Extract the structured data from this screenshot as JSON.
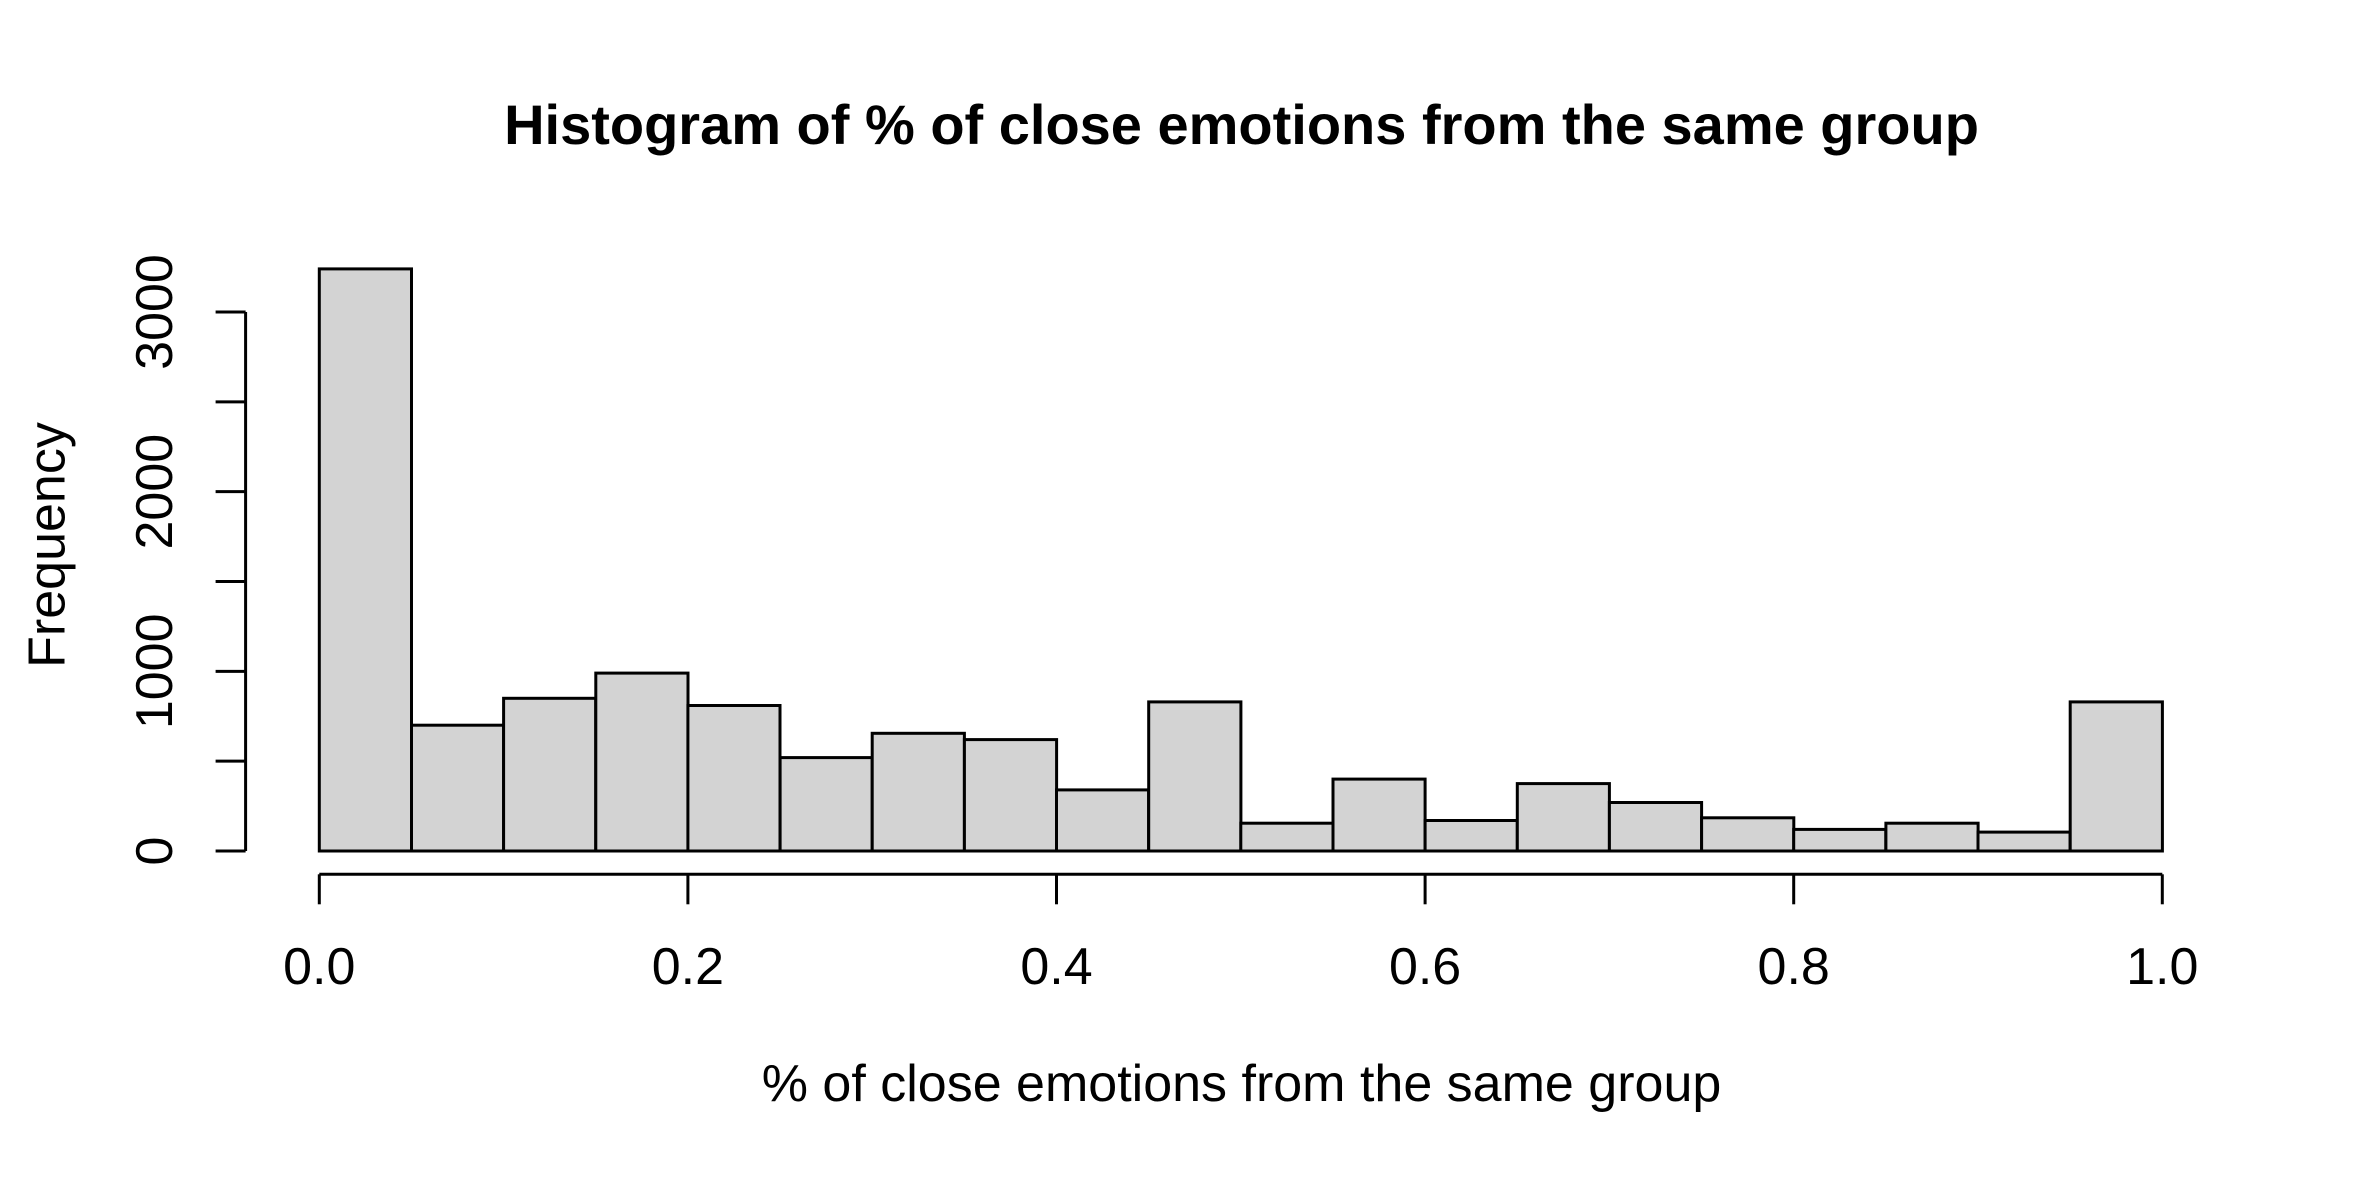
{
  "chart_data": {
    "type": "bar",
    "subtype": "histogram",
    "title": "Histogram of % of close emotions from the same group",
    "xlabel": "% of close emotions from the same group",
    "ylabel": "Frequency",
    "xlim": [
      0.0,
      1.0
    ],
    "ylim": [
      0,
      3240
    ],
    "grid": false,
    "legend": false,
    "bin_width": 0.05,
    "bin_edges": [
      0.0,
      0.05,
      0.1,
      0.15,
      0.2,
      0.25,
      0.3,
      0.35,
      0.4,
      0.45,
      0.5,
      0.55,
      0.6,
      0.65,
      0.7,
      0.75,
      0.8,
      0.85,
      0.9,
      0.95,
      1.0
    ],
    "values": [
      3240,
      700,
      850,
      990,
      810,
      520,
      655,
      620,
      340,
      830,
      155,
      400,
      170,
      375,
      270,
      185,
      120,
      155,
      105,
      830
    ],
    "x_ticks": [
      {
        "v": 0.0,
        "label": "0.0"
      },
      {
        "v": 0.2,
        "label": "0.2"
      },
      {
        "v": 0.4,
        "label": "0.4"
      },
      {
        "v": 0.6,
        "label": "0.6"
      },
      {
        "v": 0.8,
        "label": "0.8"
      },
      {
        "v": 1.0,
        "label": "1.0"
      }
    ],
    "y_ticks": [
      {
        "v": 0,
        "label": "0"
      },
      {
        "v": 500,
        "label": ""
      },
      {
        "v": 1000,
        "label": "1000"
      },
      {
        "v": 1500,
        "label": ""
      },
      {
        "v": 2000,
        "label": "2000"
      },
      {
        "v": 2500,
        "label": ""
      },
      {
        "v": 3000,
        "label": "3000"
      }
    ],
    "colors": {
      "bar_fill": "#d3d3d3",
      "bar_stroke": "#000000",
      "axis": "#000000",
      "text": "#000000",
      "background": "#ffffff"
    }
  }
}
